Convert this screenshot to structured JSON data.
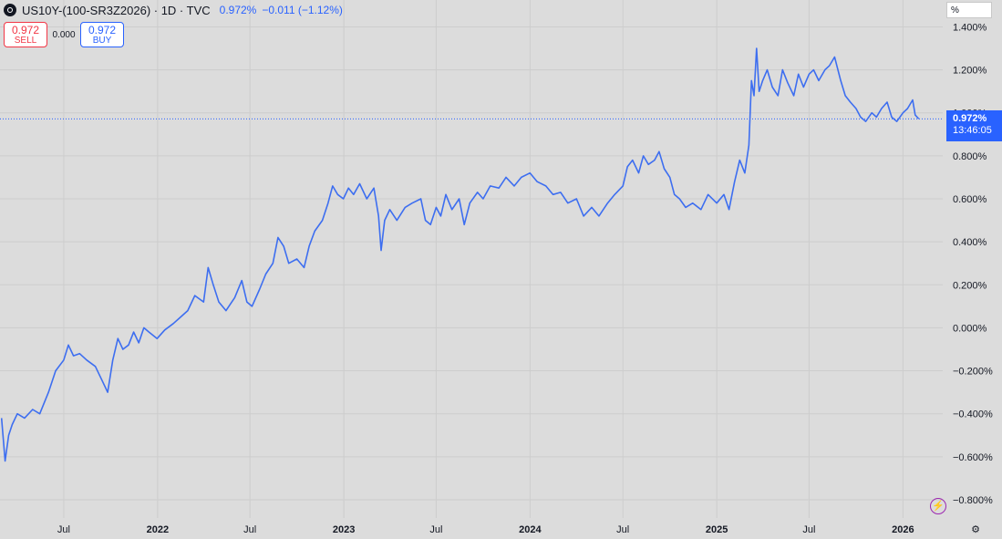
{
  "header": {
    "title": "US10Y-(100-SR3Z2026) · 1D · TVC",
    "price": "0.972%",
    "change": "−0.011 (−1.12%)"
  },
  "trade": {
    "sell_price": "0.972",
    "sell_label": "SELL",
    "spread": "0.000",
    "buy_price": "0.972",
    "buy_label": "BUY"
  },
  "scale_unit": "%",
  "last_price_tag": {
    "value": "0.972%",
    "countdown": "13:46:05"
  },
  "colors": {
    "line": "#3d6ef0",
    "accent": "#2962ff",
    "background": "#dcdcdc",
    "grid": "#cdcdcd"
  },
  "icons": {
    "alert": "lightning-icon",
    "settings": "gear-icon"
  },
  "chart_data": {
    "type": "line",
    "series": [
      {
        "values": [
          [
            "2021-03-01",
            -0.42
          ],
          [
            "2021-03-08",
            -0.62
          ],
          [
            "2021-03-15",
            -0.5
          ],
          [
            "2021-03-22",
            -0.45
          ],
          [
            "2021-04-01",
            -0.4
          ],
          [
            "2021-04-15",
            -0.42
          ],
          [
            "2021-05-01",
            -0.38
          ],
          [
            "2021-05-15",
            -0.4
          ],
          [
            "2021-06-01",
            -0.3
          ],
          [
            "2021-06-15",
            -0.2
          ],
          [
            "2021-07-01",
            -0.15
          ],
          [
            "2021-07-10",
            -0.08
          ],
          [
            "2021-07-20",
            -0.13
          ],
          [
            "2021-08-01",
            -0.12
          ],
          [
            "2021-08-15",
            -0.15
          ],
          [
            "2021-09-01",
            -0.18
          ],
          [
            "2021-09-15",
            -0.25
          ],
          [
            "2021-09-25",
            -0.3
          ],
          [
            "2021-10-05",
            -0.15
          ],
          [
            "2021-10-15",
            -0.05
          ],
          [
            "2021-10-25",
            -0.1
          ],
          [
            "2021-11-05",
            -0.08
          ],
          [
            "2021-11-15",
            -0.02
          ],
          [
            "2021-11-25",
            -0.07
          ],
          [
            "2021-12-05",
            0.0
          ],
          [
            "2021-12-15",
            -0.02
          ],
          [
            "2021-12-31",
            -0.05
          ],
          [
            "2022-01-15",
            -0.01
          ],
          [
            "2022-02-01",
            0.02
          ],
          [
            "2022-02-15",
            0.05
          ],
          [
            "2022-03-01",
            0.08
          ],
          [
            "2022-03-15",
            0.15
          ],
          [
            "2022-04-01",
            0.12
          ],
          [
            "2022-04-10",
            0.28
          ],
          [
            "2022-04-20",
            0.2
          ],
          [
            "2022-05-01",
            0.12
          ],
          [
            "2022-05-15",
            0.08
          ],
          [
            "2022-06-01",
            0.14
          ],
          [
            "2022-06-15",
            0.22
          ],
          [
            "2022-06-25",
            0.12
          ],
          [
            "2022-07-05",
            0.1
          ],
          [
            "2022-07-20",
            0.18
          ],
          [
            "2022-08-01",
            0.25
          ],
          [
            "2022-08-15",
            0.3
          ],
          [
            "2022-08-25",
            0.42
          ],
          [
            "2022-09-05",
            0.38
          ],
          [
            "2022-09-15",
            0.3
          ],
          [
            "2022-10-01",
            0.32
          ],
          [
            "2022-10-15",
            0.28
          ],
          [
            "2022-10-25",
            0.38
          ],
          [
            "2022-11-05",
            0.45
          ],
          [
            "2022-11-20",
            0.5
          ],
          [
            "2022-12-01",
            0.58
          ],
          [
            "2022-12-10",
            0.66
          ],
          [
            "2022-12-20",
            0.62
          ],
          [
            "2022-12-31",
            0.6
          ],
          [
            "2023-01-10",
            0.65
          ],
          [
            "2023-01-20",
            0.62
          ],
          [
            "2023-02-01",
            0.67
          ],
          [
            "2023-02-15",
            0.6
          ],
          [
            "2023-03-01",
            0.65
          ],
          [
            "2023-03-10",
            0.52
          ],
          [
            "2023-03-15",
            0.36
          ],
          [
            "2023-03-22",
            0.5
          ],
          [
            "2023-04-01",
            0.55
          ],
          [
            "2023-04-15",
            0.5
          ],
          [
            "2023-05-01",
            0.56
          ],
          [
            "2023-05-15",
            0.58
          ],
          [
            "2023-06-01",
            0.6
          ],
          [
            "2023-06-10",
            0.5
          ],
          [
            "2023-06-20",
            0.48
          ],
          [
            "2023-07-01",
            0.56
          ],
          [
            "2023-07-10",
            0.52
          ],
          [
            "2023-07-20",
            0.62
          ],
          [
            "2023-08-01",
            0.55
          ],
          [
            "2023-08-15",
            0.6
          ],
          [
            "2023-08-25",
            0.48
          ],
          [
            "2023-09-05",
            0.58
          ],
          [
            "2023-09-20",
            0.63
          ],
          [
            "2023-10-01",
            0.6
          ],
          [
            "2023-10-15",
            0.66
          ],
          [
            "2023-11-01",
            0.65
          ],
          [
            "2023-11-15",
            0.7
          ],
          [
            "2023-12-01",
            0.66
          ],
          [
            "2023-12-15",
            0.7
          ],
          [
            "2024-01-01",
            0.72
          ],
          [
            "2024-01-15",
            0.68
          ],
          [
            "2024-02-01",
            0.66
          ],
          [
            "2024-02-15",
            0.62
          ],
          [
            "2024-03-01",
            0.63
          ],
          [
            "2024-03-15",
            0.58
          ],
          [
            "2024-04-01",
            0.6
          ],
          [
            "2024-04-15",
            0.52
          ],
          [
            "2024-05-01",
            0.56
          ],
          [
            "2024-05-15",
            0.52
          ],
          [
            "2024-06-01",
            0.58
          ],
          [
            "2024-06-15",
            0.62
          ],
          [
            "2024-07-01",
            0.66
          ],
          [
            "2024-07-10",
            0.75
          ],
          [
            "2024-07-20",
            0.78
          ],
          [
            "2024-08-01",
            0.72
          ],
          [
            "2024-08-10",
            0.8
          ],
          [
            "2024-08-20",
            0.76
          ],
          [
            "2024-09-01",
            0.78
          ],
          [
            "2024-09-10",
            0.82
          ],
          [
            "2024-09-20",
            0.74
          ],
          [
            "2024-10-01",
            0.7
          ],
          [
            "2024-10-10",
            0.62
          ],
          [
            "2024-10-20",
            0.6
          ],
          [
            "2024-11-01",
            0.56
          ],
          [
            "2024-11-15",
            0.58
          ],
          [
            "2024-12-01",
            0.55
          ],
          [
            "2024-12-15",
            0.62
          ],
          [
            "2025-01-01",
            0.58
          ],
          [
            "2025-01-15",
            0.62
          ],
          [
            "2025-01-25",
            0.55
          ],
          [
            "2025-02-05",
            0.68
          ],
          [
            "2025-02-15",
            0.78
          ],
          [
            "2025-02-25",
            0.72
          ],
          [
            "2025-03-05",
            0.85
          ],
          [
            "2025-03-10",
            1.15
          ],
          [
            "2025-03-15",
            1.08
          ],
          [
            "2025-03-20",
            1.3
          ],
          [
            "2025-03-25",
            1.1
          ],
          [
            "2025-04-01",
            1.15
          ],
          [
            "2025-04-10",
            1.2
          ],
          [
            "2025-04-20",
            1.12
          ],
          [
            "2025-05-01",
            1.08
          ],
          [
            "2025-05-10",
            1.2
          ],
          [
            "2025-05-20",
            1.14
          ],
          [
            "2025-06-01",
            1.08
          ],
          [
            "2025-06-10",
            1.18
          ],
          [
            "2025-06-20",
            1.12
          ],
          [
            "2025-07-01",
            1.18
          ],
          [
            "2025-07-10",
            1.2
          ],
          [
            "2025-07-20",
            1.15
          ],
          [
            "2025-08-01",
            1.2
          ],
          [
            "2025-08-10",
            1.22
          ],
          [
            "2025-08-20",
            1.26
          ],
          [
            "2025-09-01",
            1.15
          ],
          [
            "2025-09-10",
            1.08
          ],
          [
            "2025-09-20",
            1.05
          ],
          [
            "2025-10-01",
            1.02
          ],
          [
            "2025-10-10",
            0.98
          ],
          [
            "2025-10-20",
            0.96
          ],
          [
            "2025-11-01",
            1.0
          ],
          [
            "2025-11-10",
            0.98
          ],
          [
            "2025-11-20",
            1.02
          ],
          [
            "2025-12-01",
            1.05
          ],
          [
            "2025-12-10",
            0.98
          ],
          [
            "2025-12-20",
            0.96
          ],
          [
            "2026-01-01",
            1.0
          ],
          [
            "2026-01-10",
            1.02
          ],
          [
            "2026-01-20",
            1.06
          ],
          [
            "2026-01-25",
            0.99
          ],
          [
            "2026-02-01",
            0.972
          ]
        ]
      }
    ],
    "x_ticks": [
      {
        "date": "2021-07-01",
        "label": "Jul",
        "bold": false
      },
      {
        "date": "2022-01-01",
        "label": "2022",
        "bold": true
      },
      {
        "date": "2022-07-01",
        "label": "Jul",
        "bold": false
      },
      {
        "date": "2023-01-01",
        "label": "2023",
        "bold": true
      },
      {
        "date": "2023-07-01",
        "label": "Jul",
        "bold": false
      },
      {
        "date": "2024-01-01",
        "label": "2024",
        "bold": true
      },
      {
        "date": "2024-07-01",
        "label": "Jul",
        "bold": false
      },
      {
        "date": "2025-01-01",
        "label": "2025",
        "bold": true
      },
      {
        "date": "2025-07-01",
        "label": "Jul",
        "bold": false
      },
      {
        "date": "2026-01-01",
        "label": "2026",
        "bold": true
      }
    ],
    "y_ticks": [
      {
        "value": 1.4,
        "label": "1.400%"
      },
      {
        "value": 1.2,
        "label": "1.200%"
      },
      {
        "value": 1.0,
        "label": "1.000%"
      },
      {
        "value": 0.8,
        "label": "0.800%"
      },
      {
        "value": 0.6,
        "label": "0.600%"
      },
      {
        "value": 0.4,
        "label": "0.400%"
      },
      {
        "value": 0.2,
        "label": "0.200%"
      },
      {
        "value": 0.0,
        "label": "0.000%"
      },
      {
        "value": -0.2,
        "label": "−0.200%"
      },
      {
        "value": -0.4,
        "label": "−0.400%"
      },
      {
        "value": -0.6,
        "label": "−0.600%"
      },
      {
        "value": -0.8,
        "label": "−0.800%"
      }
    ],
    "xlim": [
      "2021-02-26",
      "2026-03-20"
    ],
    "ylim": [
      -0.885,
      1.525
    ],
    "last_value": 0.972,
    "grid": true
  }
}
